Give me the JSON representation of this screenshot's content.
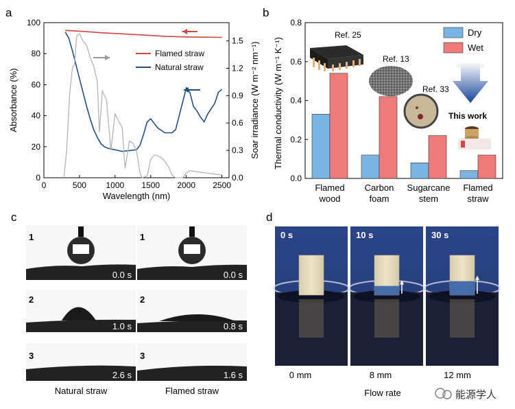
{
  "panel_labels": [
    "a",
    "b",
    "c",
    "d"
  ],
  "chart_data": [
    {
      "type": "line",
      "panel": "a",
      "xlabel": "Wavelength (nm)",
      "ylabel": "Absorbance (%)",
      "ylabel_right": "Soar irradiance (W m⁻² nm⁻¹)",
      "xlim": [
        0,
        2600
      ],
      "ylim": [
        0,
        100
      ],
      "ylim_right": [
        0,
        1.7
      ],
      "xticks": [
        "0",
        "500",
        "1000",
        "1500",
        "2000",
        "2500"
      ],
      "yticks": [
        "0",
        "20",
        "40",
        "60",
        "80",
        "100"
      ],
      "yticks_right": [
        "0.0",
        "0.3",
        "0.6",
        "0.9",
        "1.2",
        "1.5"
      ],
      "legend_position": "top-right",
      "series": [
        {
          "name": "Flamed straw",
          "color": "#d9413b",
          "axis": "left",
          "x": [
            300,
            500,
            800,
            1100,
            1400,
            1700,
            2000,
            2300,
            2500
          ],
          "y": [
            95,
            94.5,
            93.5,
            92.8,
            92,
            91.2,
            90.8,
            90.6,
            90.5
          ]
        },
        {
          "name": "Natural straw",
          "color": "#1f4e8c",
          "axis": "left",
          "x": [
            300,
            350,
            400,
            450,
            500,
            550,
            600,
            650,
            700,
            750,
            800,
            850,
            900,
            1000,
            1100,
            1200,
            1300,
            1350,
            1400,
            1450,
            1500,
            1600,
            1700,
            1800,
            1850,
            1900,
            1950,
            2000,
            2050,
            2100,
            2150,
            2200,
            2250,
            2300,
            2400,
            2450,
            2500
          ],
          "y": [
            94,
            90,
            82,
            73,
            64,
            55,
            46,
            38,
            31,
            26,
            22,
            20,
            19,
            18,
            17,
            17.5,
            18,
            21,
            28,
            36,
            38,
            32,
            29,
            29,
            31,
            40,
            49,
            58,
            55,
            46,
            43,
            39,
            36,
            41,
            48,
            55,
            57
          ]
        },
        {
          "name": "Solar spectrum",
          "color": "#b3b3b3",
          "axis": "right",
          "x": [
            280,
            320,
            360,
            400,
            430,
            460,
            500,
            550,
            600,
            650,
            700,
            750,
            780,
            820,
            880,
            940,
            1000,
            1050,
            1100,
            1140,
            1200,
            1250,
            1300,
            1350,
            1380,
            1450,
            1500,
            1550,
            1600,
            1650,
            1700,
            1750,
            1800,
            1850,
            1900,
            1950,
            2000,
            2050,
            2100,
            2200,
            2300,
            2400,
            2500
          ],
          "y": [
            0.0,
            0.3,
            0.9,
            1.2,
            1.25,
            1.55,
            1.58,
            1.5,
            1.45,
            1.32,
            1.22,
            1.05,
            0.5,
            0.95,
            0.85,
            0.3,
            0.7,
            0.62,
            0.55,
            0.1,
            0.4,
            0.38,
            0.3,
            0.05,
            0.0,
            0.02,
            0.2,
            0.25,
            0.24,
            0.22,
            0.18,
            0.12,
            0.03,
            0.0,
            0.0,
            0.0,
            0.05,
            0.08,
            0.07,
            0.06,
            0.05,
            0.04,
            0.03
          ]
        }
      ]
    },
    {
      "type": "bar",
      "panel": "b",
      "ylabel": "Thermal conductivity (W m⁻¹ K⁻¹)",
      "ylim": [
        0,
        0.8
      ],
      "yticks": [
        "0.0",
        "0.2",
        "0.4",
        "0.6",
        "0.8"
      ],
      "categories": [
        "Flamed\nwood",
        "Carbon\nfoam",
        "Sugarcane\nstem",
        "Flamed\nstraw"
      ],
      "legend_position": "top-right",
      "series": [
        {
          "name": "Dry",
          "color": "#79b4e2",
          "values": [
            0.33,
            0.12,
            0.08,
            0.04
          ]
        },
        {
          "name": "Wet",
          "color": "#f07a7a",
          "values": [
            0.54,
            0.42,
            0.22,
            0.12
          ]
        }
      ],
      "annotations": [
        "Ref. 25",
        "Ref. 13",
        "Ref. 33",
        "This work"
      ]
    }
  ],
  "panel_c": {
    "rows": [
      "1",
      "2",
      "3"
    ],
    "left_times": [
      "0.0 s",
      "1.0 s",
      "2.6 s"
    ],
    "right_times": [
      "0.0 s",
      "0.8 s",
      "1.6 s"
    ],
    "left_caption": "Natural straw",
    "right_caption": "Flamed straw"
  },
  "panel_d": {
    "times": [
      "0 s",
      "10 s",
      "30 s"
    ],
    "heights": [
      "0 mm",
      "8 mm",
      "12 mm"
    ],
    "caption": "Flow rate",
    "wick_levels": [
      0,
      0.23,
      0.35
    ]
  },
  "watermark": "能源学人"
}
